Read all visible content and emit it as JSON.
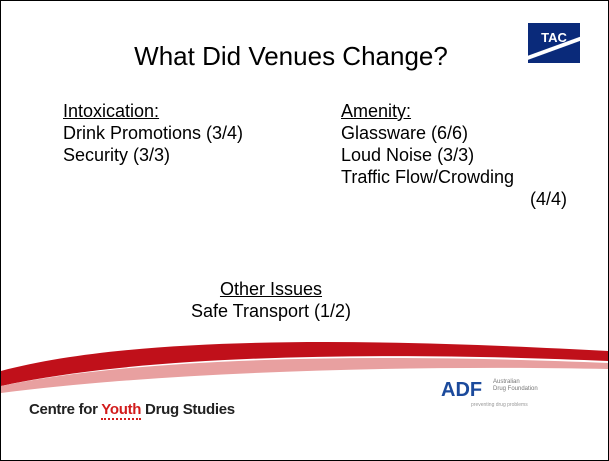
{
  "slide": {
    "title": "What Did Venues Change?",
    "logo": "TAC",
    "left": {
      "heading": "Intoxication:",
      "items": [
        "Drink Promotions (3/4)",
        "Security (3/3)"
      ]
    },
    "right": {
      "heading": "Amenity:",
      "items": [
        "Glassware (6/6)",
        "Loud Noise (3/3)",
        "Traffic Flow/Crowding",
        "(4/4)"
      ]
    },
    "other": {
      "heading": "Other Issues",
      "items": [
        "Safe Transport (1/2)"
      ]
    },
    "footer": {
      "org": [
        "Centre for",
        "Youth",
        "Drug Studies"
      ],
      "adf": {
        "mark": "ADF",
        "name": [
          "Australian",
          "Drug Foundation"
        ],
        "tagline": "preventing drug problems"
      }
    }
  }
}
